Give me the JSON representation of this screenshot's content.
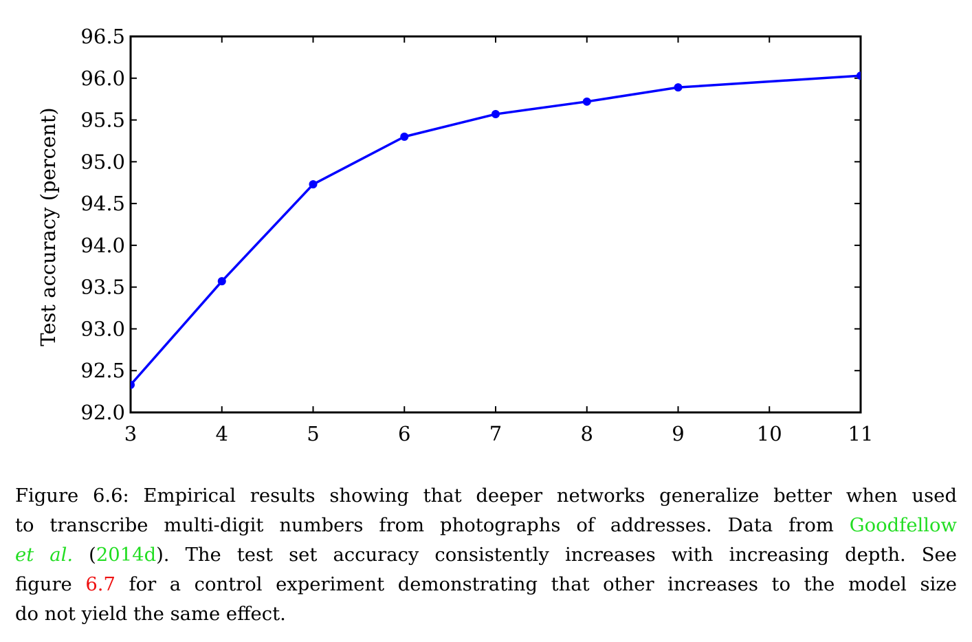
{
  "chart_data": {
    "type": "line",
    "x": [
      3,
      4,
      5,
      6,
      7,
      8,
      9,
      10,
      11
    ],
    "series": [
      {
        "x": [
          3,
          4,
          5,
          6,
          7,
          8,
          9,
          11
        ],
        "values": [
          92.33,
          93.57,
          94.73,
          95.3,
          95.57,
          95.72,
          95.89,
          96.03
        ],
        "color": "#0000ff",
        "markers": true
      }
    ],
    "ylabel": "Test accuracy (percent)",
    "xlabel": "",
    "title": "",
    "xlim": [
      3,
      11
    ],
    "ylim": [
      92.0,
      96.5
    ],
    "xticks": [
      "3",
      "4",
      "5",
      "6",
      "7",
      "8",
      "9",
      "10",
      "11"
    ],
    "yticks": [
      "92.0",
      "92.5",
      "93.0",
      "93.5",
      "94.0",
      "94.5",
      "95.0",
      "95.5",
      "96.0",
      "96.5"
    ],
    "grid": false,
    "legend": "none"
  },
  "caption": {
    "line1": "Figure 6.6: Empirical results showing that deeper networks generalize better when used",
    "line2_pre": "to transcribe multi-digit numbers from photographs of addresses. Data from",
    "cite_author_a": "Goodfellow",
    "cite_author_b": "et al.",
    "paren_open": "(",
    "cite_year": "2014d",
    "line3_post": "). The test set accuracy consistently increases with increasing depth. See",
    "line4_pre": "figure",
    "figure_ref": "6.7",
    "line4_post": "for a control experiment demonstrating that other increases to the model size",
    "line5": "do not yield the same effect.",
    "link_colors": {
      "citation": "#22dd22",
      "figure_ref": "#ee1111"
    }
  }
}
